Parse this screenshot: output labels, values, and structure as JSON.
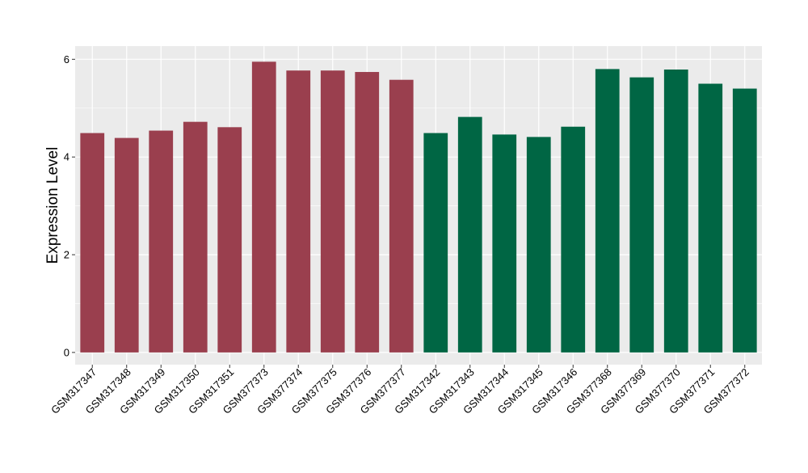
{
  "chart_data": {
    "type": "bar",
    "title": "",
    "xlabel": "",
    "ylabel": "Expression Level",
    "ylim": [
      -0.25,
      6.27
    ],
    "yticks": [
      0,
      2,
      4,
      6
    ],
    "grid": true,
    "legend": "none",
    "background_color": "#ebebeb",
    "grid_color": "#ffffff",
    "categories": [
      "GSM317347",
      "GSM317348",
      "GSM317349",
      "GSM317350",
      "GSM317351",
      "GSM377373",
      "GSM377374",
      "GSM377375",
      "GSM377376",
      "GSM377377",
      "GSM317342",
      "GSM317343",
      "GSM317344",
      "GSM317345",
      "GSM317346",
      "GSM377368",
      "GSM377369",
      "GSM377370",
      "GSM377371",
      "GSM377372"
    ],
    "values": [
      4.49,
      4.39,
      4.54,
      4.72,
      4.61,
      5.95,
      5.77,
      5.77,
      5.74,
      5.58,
      4.49,
      4.82,
      4.46,
      4.41,
      4.62,
      5.8,
      5.63,
      5.79,
      5.5,
      5.4
    ],
    "bar_colors": [
      "#9a3f4e",
      "#9a3f4e",
      "#9a3f4e",
      "#9a3f4e",
      "#9a3f4e",
      "#9a3f4e",
      "#9a3f4e",
      "#9a3f4e",
      "#9a3f4e",
      "#9a3f4e",
      "#006644",
      "#006644",
      "#006644",
      "#006644",
      "#006644",
      "#006644",
      "#006644",
      "#006644",
      "#006644",
      "#006644"
    ]
  }
}
